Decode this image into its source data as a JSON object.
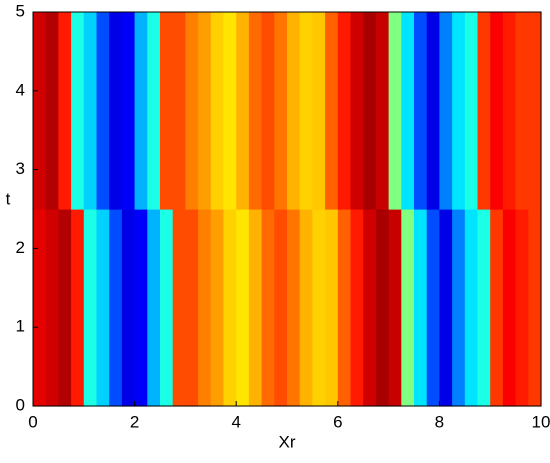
{
  "chart_data": {
    "type": "heatmap",
    "xlabel": "Xr",
    "ylabel": "t",
    "xlim": [
      0,
      10
    ],
    "ylim": [
      0,
      5
    ],
    "xticks": [
      0,
      2,
      4,
      6,
      8,
      10
    ],
    "yticks": [
      0,
      1,
      2,
      3,
      4,
      5
    ],
    "colormap": "jet",
    "zlim": [
      0,
      1
    ],
    "xbins": [
      0,
      0.25,
      0.5,
      0.75,
      1,
      1.25,
      1.5,
      1.75,
      2,
      2.25,
      2.5,
      2.75,
      3,
      3.25,
      3.5,
      3.75,
      4,
      4.25,
      4.5,
      4.75,
      5,
      5.25,
      5.5,
      5.75,
      6,
      6.25,
      6.5,
      6.75,
      7,
      7.25,
      7.5,
      7.75,
      8,
      8.25,
      8.5,
      8.75,
      9,
      9.25,
      9.5,
      9.75,
      10
    ],
    "ybins": [
      0,
      2.5,
      5
    ],
    "z": [
      [
        0.9,
        0.92,
        0.95,
        0.85,
        0.4,
        0.33,
        0.2,
        0.1,
        0.12,
        0.3,
        0.4,
        0.8,
        0.8,
        0.75,
        0.72,
        0.67,
        0.65,
        0.7,
        0.77,
        0.8,
        0.76,
        0.7,
        0.67,
        0.68,
        0.78,
        0.85,
        0.92,
        0.96,
        0.93,
        0.5,
        0.35,
        0.2,
        0.1,
        0.25,
        0.35,
        0.4,
        0.82,
        0.88,
        0.85,
        0.82
      ],
      [
        0.92,
        0.95,
        0.85,
        0.4,
        0.33,
        0.2,
        0.1,
        0.12,
        0.3,
        0.4,
        0.8,
        0.8,
        0.75,
        0.72,
        0.67,
        0.65,
        0.7,
        0.77,
        0.8,
        0.76,
        0.7,
        0.67,
        0.68,
        0.78,
        0.85,
        0.92,
        0.96,
        0.93,
        0.5,
        0.35,
        0.2,
        0.1,
        0.25,
        0.35,
        0.4,
        0.82,
        0.88,
        0.85,
        0.82,
        0.82
      ]
    ]
  }
}
